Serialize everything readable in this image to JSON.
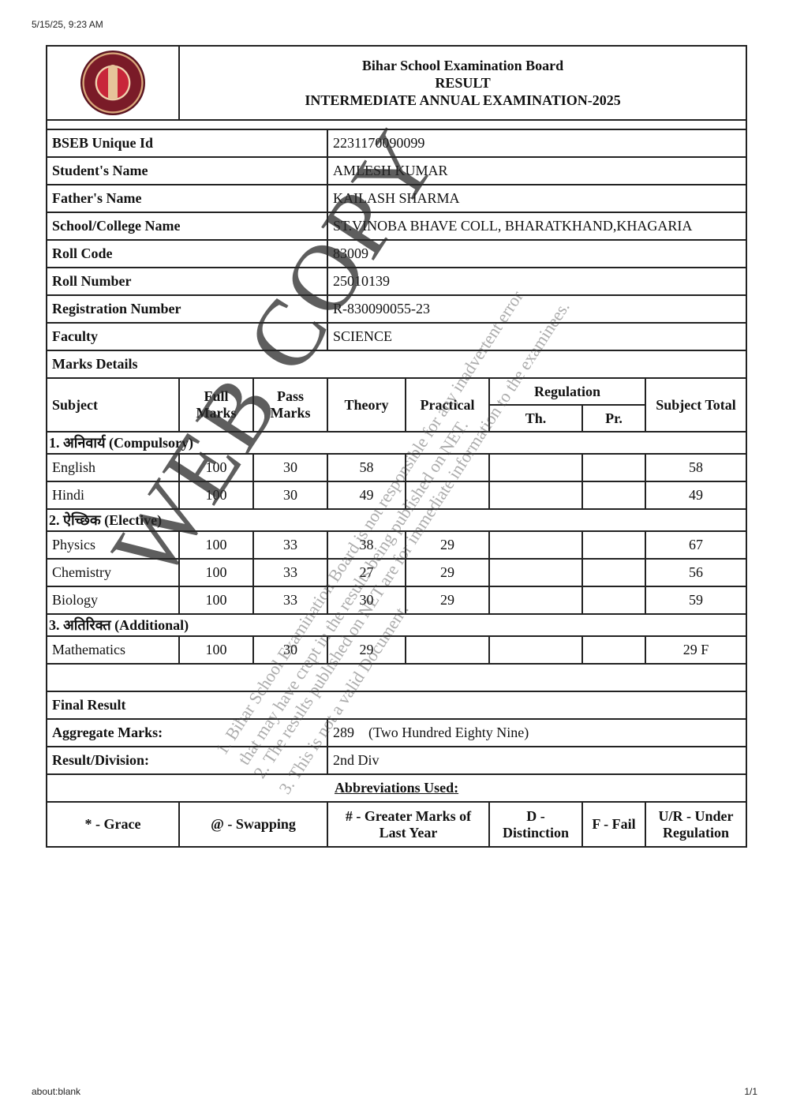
{
  "print": {
    "timestamp": "5/15/25, 9:23 AM",
    "url": "about:blank",
    "page": "1/1"
  },
  "header": {
    "logo": "BSEB seal",
    "board": "Bihar School Examination Board",
    "result": "RESULT",
    "exam": "INTERMEDIATE ANNUAL EXAMINATION-2025"
  },
  "info": [
    {
      "label": "BSEB Unique Id",
      "value": "2231170090099"
    },
    {
      "label": "Student's Name",
      "value": "AMLESH KUMAR"
    },
    {
      "label": "Father's Name",
      "value": "KAILASH SHARMA"
    },
    {
      "label": "School/College Name",
      "value": "ST.VINOBA BHAVE COLL, BHARATKHAND,KHAGARIA"
    },
    {
      "label": "Roll Code",
      "value": "83009"
    },
    {
      "label": "Roll Number",
      "value": "25010139"
    },
    {
      "label": "Registration Number",
      "value": "R-830090055-23"
    },
    {
      "label": "Faculty",
      "value": "SCIENCE"
    }
  ],
  "marks": {
    "title": "Marks Details",
    "headers": {
      "subject": "Subject",
      "full": "Full Marks",
      "pass": "Pass Marks",
      "theory": "Theory",
      "practical": "Practical",
      "regulation": "Regulation",
      "reg_th": "Th.",
      "reg_pr": "Pr.",
      "total": "Subject Total"
    },
    "sections": [
      {
        "title": "1. अनिवार्य (Compulsory)",
        "rows": [
          {
            "subject": "English",
            "full": "100",
            "pass": "30",
            "theory": "58",
            "practical": "",
            "reg_th": "",
            "reg_pr": "",
            "total": "58"
          },
          {
            "subject": "Hindi",
            "full": "100",
            "pass": "30",
            "theory": "49",
            "practical": "",
            "reg_th": "",
            "reg_pr": "",
            "total": "49"
          }
        ]
      },
      {
        "title": "2. ऐच्छिक (Elective)",
        "rows": [
          {
            "subject": "Physics",
            "full": "100",
            "pass": "33",
            "theory": "38",
            "practical": "29",
            "reg_th": "",
            "reg_pr": "",
            "total": "67"
          },
          {
            "subject": "Chemistry",
            "full": "100",
            "pass": "33",
            "theory": "27",
            "practical": "29",
            "reg_th": "",
            "reg_pr": "",
            "total": "56"
          },
          {
            "subject": "Biology",
            "full": "100",
            "pass": "33",
            "theory": "30",
            "practical": "29",
            "reg_th": "",
            "reg_pr": "",
            "total": "59"
          }
        ]
      },
      {
        "title": "3. अतिरिक्त (Additional)",
        "rows": [
          {
            "subject": "Mathematics",
            "full": "100",
            "pass": "30",
            "theory": "29",
            "practical": "",
            "reg_th": "",
            "reg_pr": "",
            "total": "29 F"
          }
        ]
      }
    ]
  },
  "final": {
    "title": "Final Result",
    "aggregate_label": "Aggregate Marks:",
    "aggregate_value": "289    (Two Hundred Eighty Nine)",
    "division_label": "Result/Division:",
    "division_value": "2nd Div"
  },
  "abbreviations": {
    "title": "Abbreviations Used:",
    "items": [
      "* - Grace",
      "@ - Swapping",
      "# - Greater Marks of Last Year",
      "D - Distinction",
      "F - Fail",
      "U/R - Under Regulation"
    ]
  },
  "watermark": {
    "main": "WEB COPY",
    "lines": [
      "1. Bihar School Examination Board is not responsible for any inadvertent error",
      "that may have crept in the results being published on NET.",
      "2. The results published on NET are for immediate information to the examinees.",
      "3. This is not a valid Document."
    ]
  }
}
